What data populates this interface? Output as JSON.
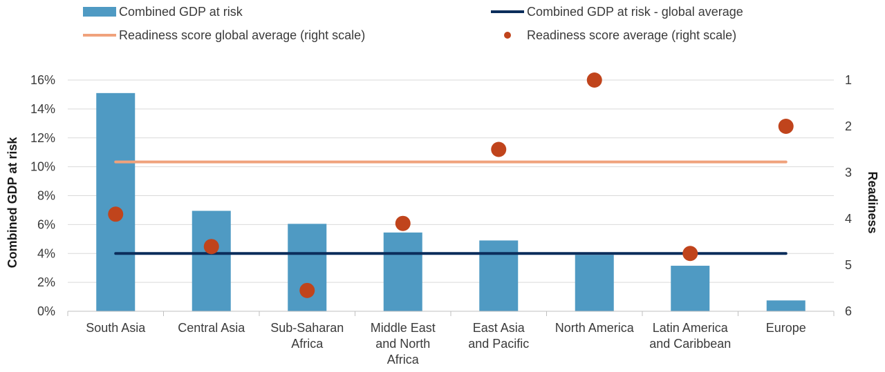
{
  "chart_data": {
    "type": "bar",
    "categories": [
      [
        "South Asia"
      ],
      [
        "Central Asia"
      ],
      [
        "Sub-Saharan",
        "Africa"
      ],
      [
        "Middle East",
        "and North",
        "Africa"
      ],
      [
        "East Asia",
        "and Pacific"
      ],
      [
        "North America"
      ],
      [
        "Latin America",
        "and Caribbean"
      ],
      [
        "Europe"
      ]
    ],
    "series": [
      {
        "name": "Combined GDP at risk",
        "kind": "bar",
        "axis": "left",
        "color": "#4f9ac3",
        "values": [
          15.1,
          6.95,
          6.05,
          5.45,
          4.9,
          3.9,
          3.15,
          0.75
        ]
      },
      {
        "name": "Combined GDP at risk - global average",
        "kind": "line",
        "axis": "left",
        "color": "#0b2d5b",
        "values": [
          4.0,
          4.0,
          4.0,
          4.0,
          4.0,
          4.0,
          4.0,
          4.0
        ]
      },
      {
        "name": "Readiness score global average (right scale)",
        "kind": "line",
        "axis": "right",
        "color": "#f0a27c",
        "values": [
          2.77,
          2.77,
          2.77,
          2.77,
          2.77,
          2.77,
          2.77,
          2.77
        ]
      },
      {
        "name": "Readiness score average (right scale)",
        "kind": "scatter",
        "axis": "right",
        "color": "#c0441c",
        "values": [
          3.9,
          4.6,
          5.55,
          4.1,
          2.5,
          1.0,
          4.75,
          2.0
        ]
      }
    ],
    "ylabel": "Combined GDP at risk",
    "y2label": "Readiness",
    "ylim": [
      0,
      16
    ],
    "yticks": [
      0,
      2,
      4,
      6,
      8,
      10,
      12,
      14,
      16
    ],
    "ytick_labels": [
      "0%",
      "2%",
      "4%",
      "6%",
      "8%",
      "10%",
      "12%",
      "14%",
      "16%"
    ],
    "y2lim": [
      1,
      6
    ],
    "y2_reversed": true,
    "y2ticks": [
      1,
      2,
      3,
      4,
      5,
      6
    ],
    "y2tick_labels": [
      "1",
      "2",
      "3",
      "4",
      "5",
      "6"
    ],
    "grid": true,
    "legend_position": "top"
  }
}
